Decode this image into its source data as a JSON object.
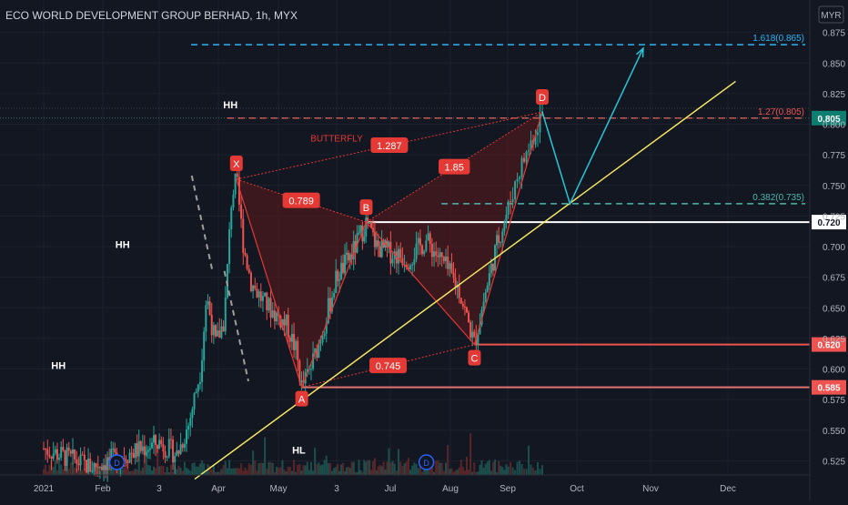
{
  "header": {
    "title": "ECO WORLD DEVELOPMENT GROUP BERHAD, 1h, MYX",
    "currency_badge": "MYR"
  },
  "colors": {
    "background": "#131722",
    "axis_text": "#b2b5be",
    "grid": "#1e222d",
    "candle_up": "#26a69a",
    "candle_down": "#ef5350",
    "pattern_red": "#e53935",
    "pattern_fill": "#5c1a1a",
    "trendline": "#f5e663",
    "projection": "#26c6da",
    "fib_blue": "#29b6f6",
    "fib_red": "#ef5350",
    "fib_green": "#4db6ac",
    "white": "#ffffff"
  },
  "chart_data": {
    "type": "candlestick",
    "symbol": "ECO WORLD DEVELOPMENT GROUP BERHAD",
    "interval": "1h",
    "exchange": "MYX",
    "currency": "MYR",
    "y_range": [
      0.5,
      0.9
    ],
    "y_ticks": [
      0.525,
      0.55,
      0.575,
      0.6,
      0.625,
      0.65,
      0.675,
      0.7,
      0.725,
      0.75,
      0.775,
      0.8,
      0.825,
      0.85,
      0.875
    ],
    "x_labels": [
      "2021",
      "Feb",
      "3",
      "Apr",
      "May",
      "3",
      "Jul",
      "Aug",
      "Sep",
      "Oct",
      "Nov",
      "Dec"
    ],
    "x_label_index": [
      0,
      1,
      2,
      3,
      4,
      5,
      6,
      7,
      8,
      9,
      10,
      11
    ],
    "x_domain": [
      -0.5,
      11.3
    ],
    "price_path": [
      [
        0.0,
        0.535
      ],
      [
        0.8,
        0.52
      ],
      [
        1.4,
        0.53
      ],
      [
        2.0,
        0.54
      ],
      [
        2.3,
        0.53
      ],
      [
        2.5,
        0.555
      ],
      [
        2.7,
        0.6
      ],
      [
        2.8,
        0.66
      ],
      [
        2.95,
        0.62
      ],
      [
        3.1,
        0.64
      ],
      [
        3.22,
        0.74
      ],
      [
        3.3,
        0.755
      ],
      [
        3.42,
        0.7
      ],
      [
        3.55,
        0.67
      ],
      [
        3.75,
        0.655
      ],
      [
        3.95,
        0.645
      ],
      [
        4.15,
        0.635
      ],
      [
        4.3,
        0.615
      ],
      [
        4.4,
        0.585
      ],
      [
        4.55,
        0.6
      ],
      [
        4.75,
        0.63
      ],
      [
        5.0,
        0.675
      ],
      [
        5.3,
        0.695
      ],
      [
        5.55,
        0.72
      ],
      [
        5.75,
        0.7
      ],
      [
        6.0,
        0.695
      ],
      [
        6.3,
        0.69
      ],
      [
        6.6,
        0.705
      ],
      [
        6.9,
        0.685
      ],
      [
        7.15,
        0.665
      ],
      [
        7.3,
        0.64
      ],
      [
        7.42,
        0.62
      ],
      [
        7.6,
        0.66
      ],
      [
        7.8,
        0.7
      ],
      [
        8.0,
        0.73
      ],
      [
        8.15,
        0.76
      ],
      [
        8.3,
        0.78
      ],
      [
        8.5,
        0.81
      ]
    ],
    "pattern": {
      "name": "BUTTERFLY",
      "points": [
        {
          "label": "X",
          "x": 3.3,
          "y": 0.755
        },
        {
          "label": "A",
          "x": 4.4,
          "y": 0.585
        },
        {
          "label": "B",
          "x": 5.55,
          "y": 0.72
        },
        {
          "label": "C",
          "x": 7.42,
          "y": 0.62
        },
        {
          "label": "D",
          "x": 8.5,
          "y": 0.81
        }
      ],
      "ratios": [
        {
          "label": "0.789",
          "from": "X",
          "via": "B"
        },
        {
          "label": "1.287",
          "from": "X",
          "via": "D"
        },
        {
          "label": "1.85",
          "from": "B",
          "via": "D"
        },
        {
          "label": "0.745",
          "from": "A",
          "via": "C"
        }
      ]
    },
    "swing_labels": [
      {
        "text": "HH",
        "x": 3.2,
        "y": 0.813
      },
      {
        "text": "HH",
        "x": 1.35,
        "y": 0.699
      },
      {
        "text": "HH",
        "x": 0.25,
        "y": 0.6
      },
      {
        "text": "HL",
        "x": 4.35,
        "y": 0.531
      }
    ],
    "horizontal_levels": [
      {
        "value": 0.72,
        "label": "0.720",
        "style": "white"
      },
      {
        "value": 0.62,
        "label": "0.620",
        "style": "red"
      },
      {
        "value": 0.585,
        "label": "0.585",
        "style": "red"
      },
      {
        "value": 0.805,
        "label": "0.805",
        "style": "teal"
      }
    ],
    "fib_levels": [
      {
        "value": 0.865,
        "text": "1.618(0.865)",
        "color": "blue"
      },
      {
        "value": 0.805,
        "text": "1.27(0.805)",
        "color": "red"
      },
      {
        "value": 0.735,
        "text": "0.382(0.735)",
        "color": "green"
      }
    ],
    "trendline": [
      [
        2.6,
        0.51
      ],
      [
        11.1,
        0.835
      ]
    ],
    "projection": [
      [
        8.5,
        0.81
      ],
      [
        8.9,
        0.735
      ],
      [
        9.9,
        0.862
      ]
    ],
    "dividend_markers": [
      1.25,
      6.6
    ]
  }
}
